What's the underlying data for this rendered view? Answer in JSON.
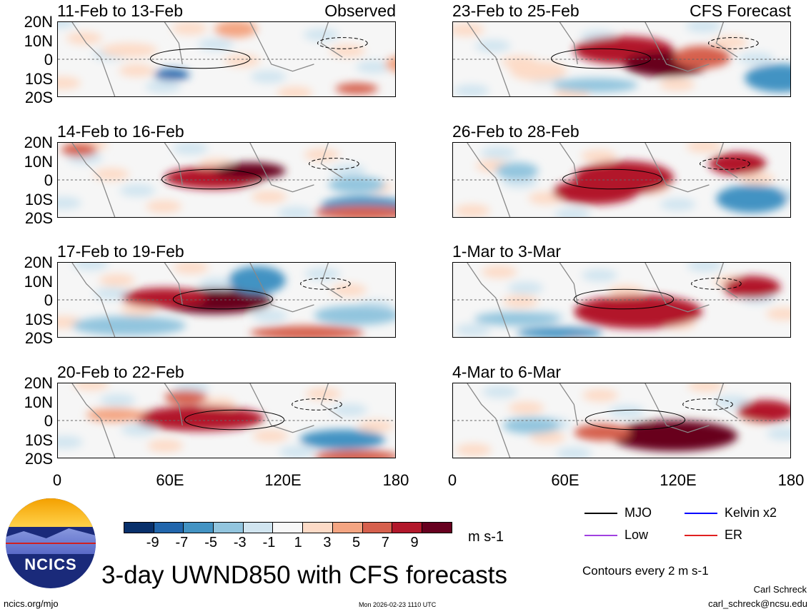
{
  "panels": [
    {
      "title": "11-Feb to 13-Feb",
      "tag": "Observed"
    },
    {
      "title": "23-Feb to 25-Feb",
      "tag": "CFS Forecast"
    },
    {
      "title": "14-Feb to 16-Feb",
      "tag": ""
    },
    {
      "title": "26-Feb to 28-Feb",
      "tag": ""
    },
    {
      "title": "17-Feb to 19-Feb",
      "tag": ""
    },
    {
      "title": "1-Mar to 3-Mar",
      "tag": ""
    },
    {
      "title": "20-Feb to 22-Feb",
      "tag": ""
    },
    {
      "title": "4-Mar to 6-Mar",
      "tag": ""
    }
  ],
  "y_ticks": [
    "20N",
    "10N",
    "0",
    "10S",
    "20S"
  ],
  "x_ticks": [
    "0",
    "60E",
    "120E",
    "180"
  ],
  "colorbar": {
    "labels": [
      "-9",
      "-7",
      "-5",
      "-3",
      "-1",
      "1",
      "3",
      "5",
      "7",
      "9"
    ],
    "colors": [
      "#08306b",
      "#2166ac",
      "#4393c3",
      "#92c5de",
      "#d1e5f0",
      "#f7f7f7",
      "#fddbc7",
      "#f4a582",
      "#d6604d",
      "#b2182b",
      "#67001f"
    ],
    "units": "m s-1"
  },
  "legend": [
    {
      "label": "MJO",
      "color": "#000000"
    },
    {
      "label": "Kelvin x2",
      "color": "#0000ff"
    },
    {
      "label": "Low",
      "color": "#a040e0"
    },
    {
      "label": "ER",
      "color": "#e02020"
    }
  ],
  "contour_note": "Contours every 2 m s-1",
  "title": "3-day UWND850 with CFS forecasts",
  "logo_text": "NCICS",
  "footer": {
    "url": "ncics.org/mjo",
    "timestamp": "Mon 2026-02-23 1110 UTC",
    "author": "Carl Schreck",
    "email": "carl_schreck@ncsu.edu"
  }
}
